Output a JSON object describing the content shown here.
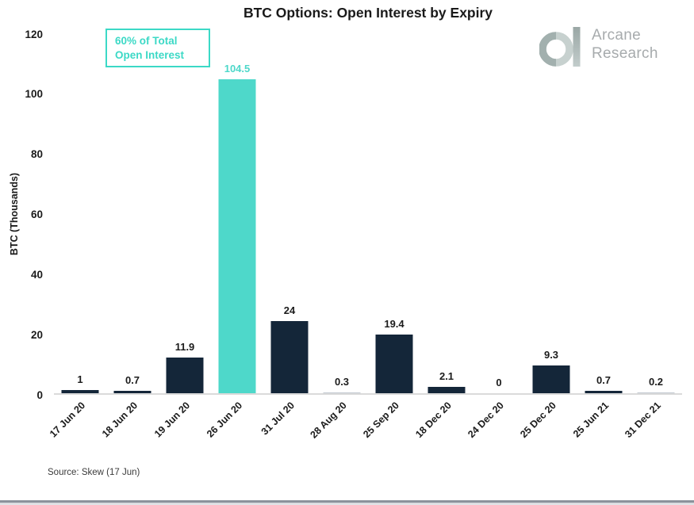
{
  "header": {
    "title": "BTC Options: Open Interest by Expiry"
  },
  "annotation": {
    "line1": "60% of Total",
    "line2": "Open Interest"
  },
  "logo": {
    "line1": "Arcane",
    "line2": "Research"
  },
  "chart_data": {
    "type": "bar",
    "title": "BTC Options: Open Interest by Expiry",
    "categories": [
      "17 Jun 20",
      "18 Jun 20",
      "19 Jun 20",
      "26 Jun 20",
      "31 Jul 20",
      "28 Aug 20",
      "25 Sep 20",
      "18 Dec 20",
      "24 Dec 20",
      "25 Dec 20",
      "25 Jun 21",
      "31 Dec 21"
    ],
    "values": [
      1,
      0.7,
      11.9,
      104.5,
      24,
      0.3,
      19.4,
      2.1,
      0,
      9.3,
      0.7,
      0.2
    ],
    "value_labels": [
      "1",
      "0.7",
      "11.9",
      "104.5",
      "24",
      "0.3",
      "19.4",
      "2.1",
      "0",
      "9.3",
      "0.7",
      "0.2"
    ],
    "xlabel": "",
    "ylabel": "BTC  (Thousands)",
    "ylim": [
      0,
      120
    ],
    "yticks": [
      0,
      20,
      40,
      60,
      80,
      100,
      120
    ],
    "grid": false,
    "legend": "none",
    "highlight_index": 3,
    "annotation": "60% of Total Open Interest",
    "colors": {
      "bar": "#142639",
      "highlight": "#4ed8ca",
      "tiny_bar": "#c3c9d2"
    }
  },
  "footer": {
    "source": "Source: Skew (17 Jun)"
  }
}
